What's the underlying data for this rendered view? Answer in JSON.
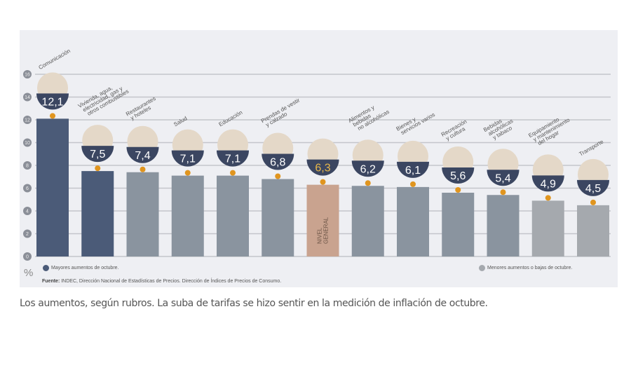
{
  "chart_data": {
    "type": "bar",
    "ylabel": "%",
    "ylim": [
      0,
      16
    ],
    "yticks": [
      0,
      2,
      4,
      6,
      8,
      10,
      12,
      14,
      16
    ],
    "grid": true,
    "categories": [
      [
        "Comunicación"
      ],
      [
        "Vivienda, agua,",
        "electricidad, gas y",
        "otros combustibles"
      ],
      [
        "Restaurantes",
        "y hoteles"
      ],
      [
        "Salud"
      ],
      [
        "Educación"
      ],
      [
        "Prendas de vestir",
        "y calzado"
      ],
      [
        "NIVEL",
        "GENERAL"
      ],
      [
        "Alimentos y",
        "bebidas",
        "no alcohólicas"
      ],
      [
        "Bienes y",
        "servicios varios"
      ],
      [
        "Recreación",
        "y cultura"
      ],
      [
        "Bebidas",
        "alcohólicas",
        "y tabaco"
      ],
      [
        "Equipamiento",
        "y mantenimiento",
        "del hogar"
      ],
      [
        "Transporte"
      ]
    ],
    "values": [
      12.1,
      7.5,
      7.4,
      7.1,
      7.1,
      6.8,
      6.3,
      6.2,
      6.1,
      5.6,
      5.4,
      4.9,
      4.5
    ],
    "value_labels": [
      "12,1",
      "7,5",
      "7,4",
      "7,1",
      "7,1",
      "6,8",
      "6,3",
      "6,2",
      "6,1",
      "5,6",
      "5,4",
      "4,9",
      "4,5"
    ],
    "groups": [
      "mayores",
      "mayores",
      "menores",
      "menores",
      "menores",
      "menores",
      "general",
      "menores",
      "menores",
      "menores",
      "menores",
      "menores",
      "menores"
    ],
    "colors": {
      "mayores": "#4b5b78",
      "menores": "#8a949f",
      "general": "#c9a38f",
      "badge": "#3b4661",
      "dot": "#e0951f",
      "general_label": "#e8b84a"
    },
    "legend": [
      {
        "label": "Mayores aumentos de octubre.",
        "color": "#4b5b78"
      },
      {
        "label": "Menores aumentos o bajas de octubre.",
        "color": "#a5a9ae"
      }
    ]
  },
  "source_label": "Fuente:",
  "source_text": "INDEC, Dirección Nacional de Estadísticas de Precios. Dirección de Índices de Precios de Consumo.",
  "caption": "Los aumentos, según rubros. La suba de tarifas se hizo sentir en la medición de inflación de octubre."
}
